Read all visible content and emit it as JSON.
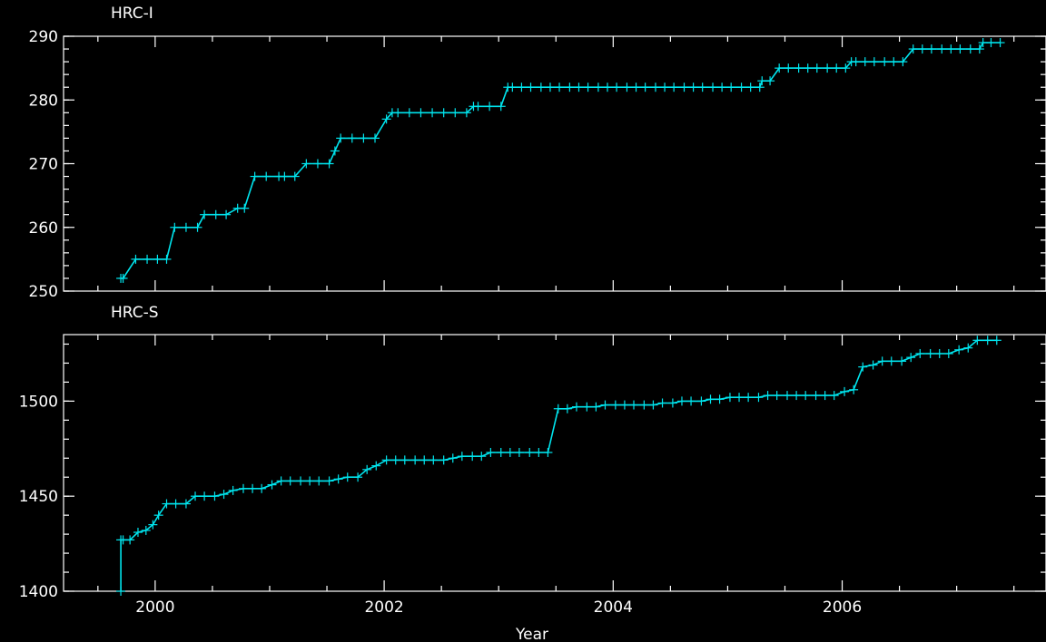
{
  "colors": {
    "background": "#000000",
    "axes": "#ffffff",
    "series": "#00e5ee"
  },
  "chart_data": [
    {
      "type": "line",
      "title": "HRC-I",
      "xlabel": "",
      "ylabel": "",
      "xlim": [
        1999.2,
        2007.78
      ],
      "ylim": [
        250,
        290
      ],
      "yticks": [
        "250",
        "260",
        "270",
        "280",
        "290"
      ],
      "ytick_values": [
        250,
        260,
        270,
        280,
        290
      ],
      "xtick_values": [
        2000,
        2002,
        2004,
        2006
      ],
      "series": [
        {
          "marker": "plus",
          "x": [
            1999.7,
            1999.72,
            1999.83,
            1999.93,
            2000.02,
            2000.1,
            2000.17,
            2000.27,
            2000.37,
            2000.43,
            2000.53,
            2000.62,
            2000.72,
            2000.78,
            2000.87,
            2000.97,
            2001.08,
            2001.13,
            2001.22,
            2001.32,
            2001.42,
            2001.52,
            2001.57,
            2001.62,
            2001.72,
            2001.82,
            2001.92,
            2002.02,
            2002.07,
            2002.12,
            2002.22,
            2002.32,
            2002.42,
            2002.52,
            2002.62,
            2002.72,
            2002.78,
            2002.82,
            2002.92,
            2003.02,
            2003.08,
            2003.12,
            2003.2,
            2003.28,
            2003.37,
            2003.45,
            2003.53,
            2003.62,
            2003.7,
            2003.78,
            2003.87,
            2003.95,
            2004.03,
            2004.12,
            2004.2,
            2004.28,
            2004.37,
            2004.45,
            2004.53,
            2004.62,
            2004.7,
            2004.78,
            2004.87,
            2004.95,
            2005.03,
            2005.12,
            2005.2,
            2005.28,
            2005.3,
            2005.37,
            2005.45,
            2005.53,
            2005.62,
            2005.7,
            2005.78,
            2005.87,
            2005.95,
            2006.03,
            2006.08,
            2006.12,
            2006.2,
            2006.28,
            2006.37,
            2006.45,
            2006.53,
            2006.62,
            2006.7,
            2006.78,
            2006.87,
            2006.95,
            2007.03,
            2007.12,
            2007.2,
            2007.23,
            2007.3,
            2007.38
          ],
          "y": [
            252,
            252,
            255,
            255,
            255,
            255,
            260,
            260,
            260,
            262,
            262,
            262,
            263,
            263,
            268,
            268,
            268,
            268,
            268,
            270,
            270,
            270,
            272,
            274,
            274,
            274,
            274,
            277,
            278,
            278,
            278,
            278,
            278,
            278,
            278,
            278,
            279,
            279,
            279,
            279,
            282,
            282,
            282,
            282,
            282,
            282,
            282,
            282,
            282,
            282,
            282,
            282,
            282,
            282,
            282,
            282,
            282,
            282,
            282,
            282,
            282,
            282,
            282,
            282,
            282,
            282,
            282,
            282,
            283,
            283,
            285,
            285,
            285,
            285,
            285,
            285,
            285,
            285,
            286,
            286,
            286,
            286,
            286,
            286,
            286,
            288,
            288,
            288,
            288,
            288,
            288,
            288,
            288,
            289,
            289,
            289
          ]
        }
      ]
    },
    {
      "type": "line",
      "title": "HRC-S",
      "xlabel": "Year",
      "ylabel": "",
      "xlim": [
        1999.2,
        2007.78
      ],
      "ylim": [
        1400,
        1535
      ],
      "yticks": [
        "1400",
        "1450",
        "1500"
      ],
      "ytick_values": [
        1400,
        1450,
        1500
      ],
      "xticks": [
        "2000",
        "2002",
        "2004",
        "2006"
      ],
      "xtick_values": [
        2000,
        2002,
        2004,
        2006
      ],
      "series": [
        {
          "marker": "plus",
          "x": [
            1999.7,
            1999.7,
            1999.72,
            1999.78,
            1999.85,
            1999.92,
            1999.98,
            2000.03,
            2000.1,
            2000.18,
            2000.27,
            2000.35,
            2000.43,
            2000.52,
            2000.6,
            2000.68,
            2000.77,
            2000.85,
            2000.93,
            2001.02,
            2001.1,
            2001.18,
            2001.27,
            2001.35,
            2001.43,
            2001.52,
            2001.6,
            2001.68,
            2001.77,
            2001.85,
            2001.93,
            2002.02,
            2002.1,
            2002.18,
            2002.27,
            2002.35,
            2002.43,
            2002.52,
            2002.6,
            2002.68,
            2002.77,
            2002.85,
            2002.93,
            2003.02,
            2003.1,
            2003.18,
            2003.27,
            2003.35,
            2003.43,
            2003.52,
            2003.6,
            2003.68,
            2003.77,
            2003.85,
            2003.93,
            2004.02,
            2004.1,
            2004.18,
            2004.27,
            2004.35,
            2004.43,
            2004.52,
            2004.6,
            2004.68,
            2004.77,
            2004.85,
            2004.93,
            2005.02,
            2005.1,
            2005.18,
            2005.27,
            2005.35,
            2005.43,
            2005.52,
            2005.6,
            2005.68,
            2005.77,
            2005.85,
            2005.93,
            2006.02,
            2006.1,
            2006.18,
            2006.27,
            2006.35,
            2006.43,
            2006.52,
            2006.6,
            2006.68,
            2006.77,
            2006.85,
            2006.93,
            2007.02,
            2007.1,
            2007.18,
            2007.27,
            2007.35
          ],
          "y": [
            1400,
            1427,
            1427,
            1427,
            1431,
            1432,
            1435,
            1440,
            1446,
            1446,
            1446,
            1450,
            1450,
            1450,
            1451,
            1453,
            1454,
            1454,
            1454,
            1456,
            1458,
            1458,
            1458,
            1458,
            1458,
            1458,
            1459,
            1460,
            1460,
            1464,
            1466,
            1469,
            1469,
            1469,
            1469,
            1469,
            1469,
            1469,
            1470,
            1471,
            1471,
            1471,
            1473,
            1473,
            1473,
            1473,
            1473,
            1473,
            1473,
            1496,
            1496,
            1497,
            1497,
            1497,
            1498,
            1498,
            1498,
            1498,
            1498,
            1498,
            1499,
            1499,
            1500,
            1500,
            1500,
            1501,
            1501,
            1502,
            1502,
            1502,
            1502,
            1503,
            1503,
            1503,
            1503,
            1503,
            1503,
            1503,
            1503,
            1505,
            1506,
            1518,
            1519,
            1521,
            1521,
            1521,
            1523,
            1525,
            1525,
            1525,
            1525,
            1527,
            1528,
            1532,
            1532,
            1532
          ]
        }
      ]
    }
  ]
}
